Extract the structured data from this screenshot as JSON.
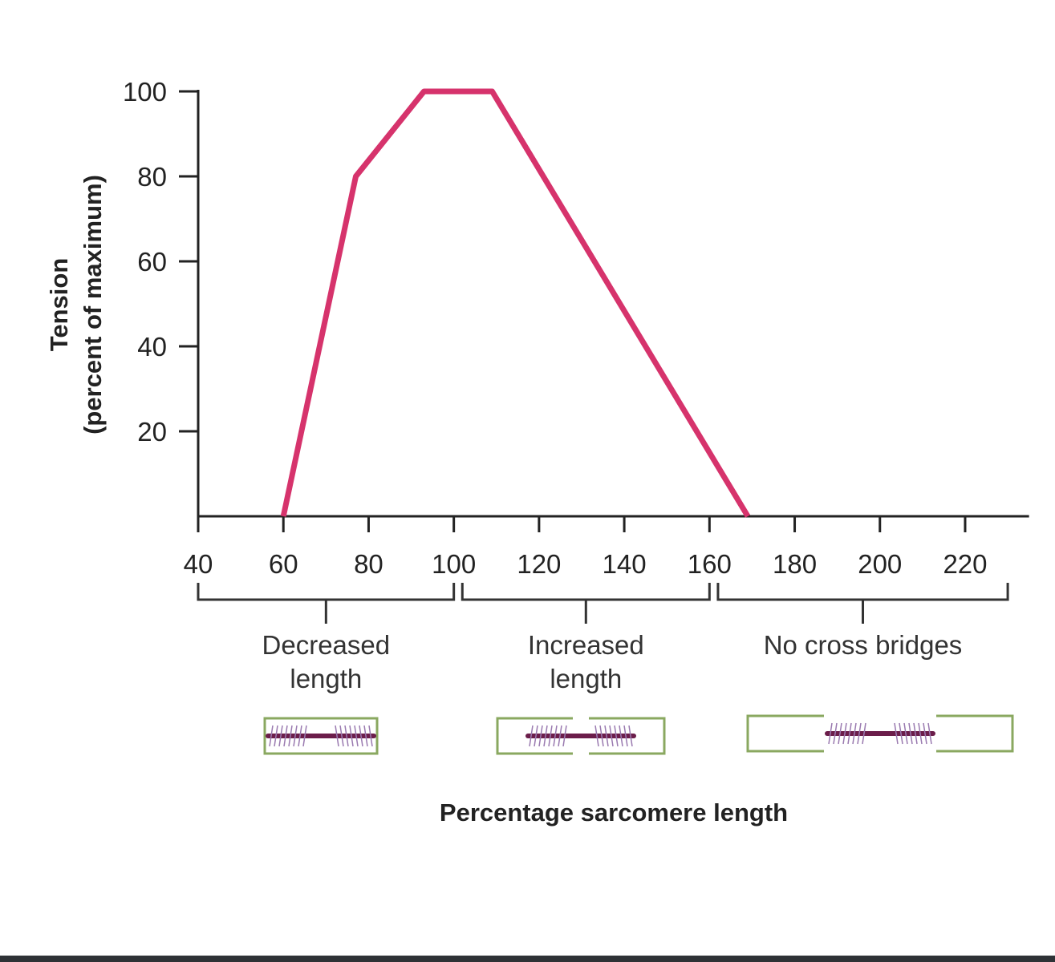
{
  "chart_data": {
    "type": "line",
    "xlabel": "Percentage sarcomere length",
    "ylabel": "Tension",
    "ylabel_sub": "(percent of maximum)",
    "xlim": [
      40,
      235
    ],
    "ylim": [
      0,
      100
    ],
    "x_ticks": [
      40,
      60,
      80,
      100,
      120,
      140,
      160,
      180,
      200,
      220
    ],
    "y_ticks": [
      20,
      40,
      60,
      80,
      100
    ],
    "grid": false,
    "line_color": "#d6336c",
    "series": [
      {
        "x": [
          60,
          77,
          93,
          109,
          169
        ],
        "y": [
          0,
          80,
          100,
          100,
          0
        ]
      }
    ],
    "regions": [
      {
        "label_line1": "Decreased",
        "label_line2": "length",
        "range": [
          40,
          100
        ]
      },
      {
        "label_line1": "Increased",
        "label_line2": "length",
        "range": [
          102,
          160
        ]
      },
      {
        "label_line1": "No cross bridges",
        "label_line2": "",
        "range": [
          162,
          230
        ]
      }
    ],
    "colors": {
      "actin": "#8aa860",
      "myosin": "#6b1d4a",
      "heads": "#9a7ab0"
    }
  }
}
